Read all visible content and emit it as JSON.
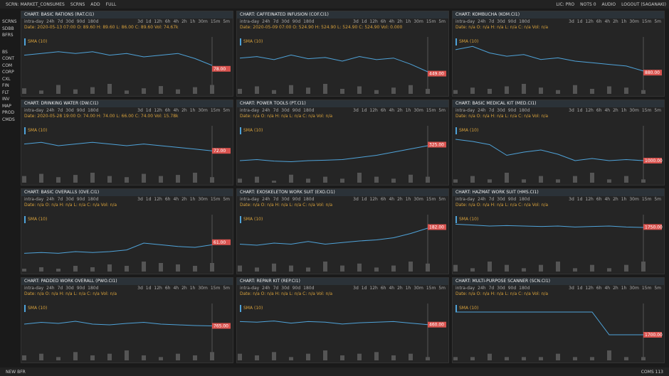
{
  "topbar": {
    "screen": "SCRN: MARKET_CONSUMES",
    "buttons": [
      "SCRNS",
      "ADD",
      "FULL"
    ],
    "right": [
      "LIC: PRO",
      "NOTS 0",
      "AUDIO",
      "LOGOUT (SAGANAKI)"
    ]
  },
  "sidebar": {
    "top": [
      "SCRNS",
      "SDBB",
      "BFRS"
    ],
    "commands": [
      "BS",
      "CONT",
      "COM",
      "CORP",
      "CXL",
      "FIN",
      "FLT",
      "INV",
      "MAP",
      "PROD",
      "CMDS"
    ]
  },
  "toolbar": {
    "ranges": [
      "intra-day",
      "24h",
      "7d",
      "30d",
      "90d",
      "180d"
    ],
    "intervals": [
      "3d",
      "1d",
      "12h",
      "6h",
      "4h",
      "2h",
      "1h",
      "30m",
      "15m",
      "5m"
    ],
    "sma": "SMA (10)"
  },
  "panels": [
    {
      "title": "CHART: BASIC RATIONS (RAT.CI1)",
      "ohlc": "Date: 2020-05-13 07:00 O: 89.60 H: 89.60 L: 86.00 C: 89.60 Vol: 74.67k",
      "price": "78.00",
      "ylim": [
        70,
        95
      ],
      "line": [
        86,
        87,
        88,
        87,
        88,
        86,
        87,
        85,
        86,
        87,
        84,
        80
      ],
      "volume": [
        5,
        3,
        8,
        4,
        6,
        9,
        3,
        5,
        7,
        4,
        6,
        8
      ]
    },
    {
      "title": "CHART: CAFFEINATED INFUSION (COF.CI1)",
      "ohlc": "Date: 2020-05-09 07:00 O: 524.90 H: 524.90 L: 524.90 C: 524.90 Vol: 0.000",
      "price": "449.00",
      "ylim": [
        420,
        560
      ],
      "line": [
        500,
        505,
        495,
        510,
        498,
        502,
        490,
        505,
        495,
        500,
        480,
        455
      ],
      "volume": [
        4,
        6,
        3,
        7,
        5,
        8,
        4,
        6,
        3,
        5,
        7,
        4
      ]
    },
    {
      "title": "CHART: KOMBUCHA (KOM.CI1)",
      "ohlc": "Date: n/a O: n/a H: n/a L: n/a C: n/a Vol: n/a",
      "price": "880.00",
      "ylim": [
        850,
        980
      ],
      "line": [
        950,
        960,
        940,
        930,
        935,
        920,
        925,
        915,
        910,
        905,
        900,
        885
      ],
      "volume": [
        3,
        5,
        4,
        6,
        8,
        5,
        3,
        7,
        4,
        6,
        5,
        3
      ]
    },
    {
      "title": "CHART: DRINKING WATER (DW.CI1)",
      "ohlc": "Date: 2020-05-28 19:00 O: 74.00 H: 74.00 L: 66.00 C: 74.00 Vol: 15.78k",
      "price": "72.00",
      "ylim": [
        60,
        85
      ],
      "line": [
        76,
        77,
        75,
        76,
        77,
        76,
        75,
        76,
        75,
        74,
        73,
        72
      ],
      "volume": [
        6,
        8,
        5,
        7,
        9,
        6,
        5,
        8,
        6,
        7,
        9,
        5
      ]
    },
    {
      "title": "CHART: POWER TOOLS (PT.CI1)",
      "ohlc": "Date: n/a O: n/a H: n/a L: n/a C: n/a Vol: n/a",
      "price": "325.00",
      "ylim": [
        200,
        400
      ],
      "line": [
        250,
        255,
        248,
        245,
        250,
        252,
        255,
        265,
        275,
        290,
        305,
        320
      ],
      "volume": [
        2,
        3,
        1,
        4,
        2,
        3,
        2,
        5,
        3,
        2,
        4,
        3
      ]
    },
    {
      "title": "CHART: BASIC MEDICAL KIT (MED.CI1)",
      "ohlc": "Date: n/a O: n/a H: n/a L: n/a C: n/a Vol: n/a",
      "price": "1000.00",
      "ylim": [
        900,
        1300
      ],
      "line": [
        1200,
        1180,
        1150,
        1050,
        1080,
        1100,
        1060,
        1000,
        1020,
        1000,
        1010,
        1000
      ],
      "volume": [
        1,
        2,
        1,
        3,
        1,
        2,
        1,
        2,
        3,
        1,
        2,
        1
      ]
    },
    {
      "title": "CHART: BASIC OVERALLS (OVE.CI1)",
      "ohlc": "Date: n/a O: n/a H: n/a L: n/a C: n/a Vol: n/a",
      "price": "61.00",
      "ylim": [
        40,
        90
      ],
      "line": [
        48,
        49,
        48,
        50,
        49,
        50,
        52,
        60,
        58,
        56,
        55,
        58
      ],
      "volume": [
        2,
        3,
        2,
        4,
        3,
        5,
        4,
        7,
        6,
        5,
        4,
        6
      ]
    },
    {
      "title": "CHART: EXOSKELETON WORK SUIT (EXO.CI1)",
      "ohlc": "Date: n/a O: n/a H: n/a L: n/a C: n/a Vol: n/a",
      "price": "182.00",
      "ylim": [
        120,
        200
      ],
      "line": [
        150,
        148,
        152,
        150,
        155,
        150,
        153,
        156,
        158,
        162,
        170,
        180
      ],
      "volume": [
        3,
        2,
        4,
        3,
        2,
        5,
        3,
        4,
        2,
        3,
        5,
        4
      ]
    },
    {
      "title": "CHART: HAZMAT WORK SUIT (HMS.CI1)",
      "ohlc": "Date: n/a O: n/a H: n/a L: n/a C: n/a Vol: n/a",
      "price": "1750.00",
      "ylim": [
        1400,
        1850
      ],
      "line": [
        1780,
        1770,
        1760,
        1765,
        1760,
        1755,
        1760,
        1750,
        1755,
        1760,
        1750,
        1745
      ],
      "volume": [
        2,
        1,
        3,
        2,
        1,
        2,
        3,
        1,
        2,
        1,
        2,
        3
      ]
    },
    {
      "title": "CHART: PADDED WORK OVERALL (PWO.CI1)",
      "ohlc": "Date: n/a O: n/a H: n/a L: n/a C: n/a Vol: n/a",
      "price": "765.00",
      "ylim": [
        700,
        820
      ],
      "line": [
        770,
        775,
        772,
        778,
        770,
        768,
        772,
        775,
        770,
        768,
        766,
        765
      ],
      "volume": [
        3,
        4,
        2,
        5,
        3,
        4,
        6,
        3,
        2,
        4,
        3,
        5
      ]
    },
    {
      "title": "CHART: REPAIR KIT (REP.CI1)",
      "ohlc": "Date: n/a O: n/a H: n/a L: n/a C: n/a Vol: n/a",
      "price": "460.00",
      "ylim": [
        380,
        520
      ],
      "line": [
        470,
        468,
        472,
        465,
        470,
        468,
        462,
        466,
        468,
        470,
        465,
        460
      ],
      "volume": [
        4,
        3,
        5,
        2,
        4,
        6,
        3,
        4,
        5,
        3,
        4,
        2
      ]
    },
    {
      "title": "CHART: MULTI-PURPOSE SCANNER (SCN.CI1)",
      "ohlc": "Date: n/a O: n/a H: n/a L: n/a C: n/a Vol: n/a",
      "price": "1700.00",
      "ylim": [
        1650,
        1800
      ],
      "line": [
        1780,
        1780,
        1780,
        1780,
        1780,
        1780,
        1780,
        1780,
        1780,
        1700,
        1700,
        1700
      ],
      "volume": [
        1,
        1,
        2,
        1,
        1,
        1,
        2,
        1,
        1,
        3,
        1,
        1
      ]
    }
  ],
  "footer": {
    "left": "NEW BFR",
    "right": "COMS 113"
  }
}
